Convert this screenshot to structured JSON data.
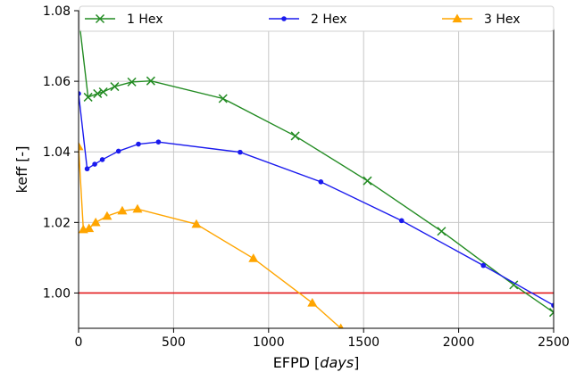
{
  "chart_data": {
    "type": "line",
    "xlabel": "EFPD [",
    "xlabel_unit": "days",
    "xlabel_close": "]",
    "ylabel": "keff [-]",
    "xlim": [
      0,
      2500
    ],
    "ylim": [
      0.99,
      1.08
    ],
    "xticks": [
      0,
      500,
      1000,
      1500,
      2000,
      2500
    ],
    "yticks": [
      1.0,
      1.02,
      1.04,
      1.06,
      1.08
    ],
    "xtick_labels": [
      "0",
      "500",
      "1000",
      "1500",
      "2000",
      "2500"
    ],
    "ytick_labels": [
      "1.00",
      "1.02",
      "1.04",
      "1.06",
      "1.08"
    ],
    "grid": true,
    "legend_position": "top",
    "reference_line": {
      "y": 1.0,
      "color": "#e31a1c"
    },
    "series": [
      {
        "name": "1 Hex",
        "color": "#228b22",
        "marker": "x",
        "x": [
          0,
          50,
          100,
          130,
          190,
          280,
          380,
          760,
          1140,
          1520,
          1910,
          2290,
          2500
        ],
        "y": [
          1.0785,
          1.0555,
          1.0565,
          1.057,
          1.0585,
          1.0598,
          1.0601,
          1.0551,
          1.0445,
          1.0318,
          1.0175,
          1.0023,
          0.9945
        ]
      },
      {
        "name": "2 Hex",
        "color": "#1a1aee",
        "marker": "o",
        "x": [
          0,
          45,
          85,
          125,
          210,
          315,
          420,
          850,
          1275,
          1700,
          2130,
          2500
        ],
        "y": [
          1.0565,
          1.0352,
          1.0365,
          1.0378,
          1.0402,
          1.0422,
          1.0428,
          1.0399,
          1.0315,
          1.0205,
          1.0078,
          0.9965
        ]
      },
      {
        "name": "3 Hex",
        "color": "#ffa500",
        "marker": "^",
        "x": [
          0,
          25,
          55,
          90,
          150,
          230,
          310,
          620,
          920,
          1230,
          1380
        ],
        "y": [
          1.0415,
          1.018,
          1.0183,
          1.02,
          1.0218,
          1.0233,
          1.0238,
          1.0195,
          1.0098,
          0.9972,
          0.99
        ]
      }
    ]
  }
}
